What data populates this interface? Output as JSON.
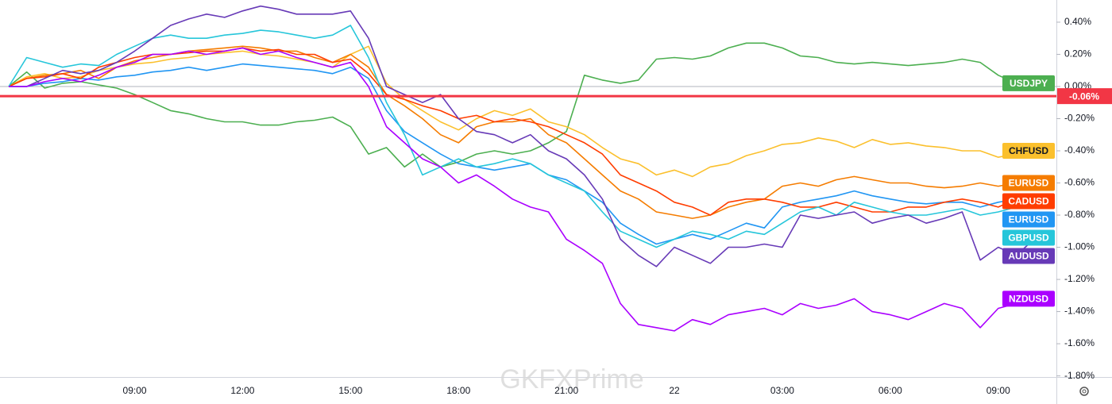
{
  "chart_data": {
    "type": "line",
    "categories": [
      null,
      null,
      null,
      null,
      null,
      null,
      null,
      "09:00",
      null,
      null,
      null,
      null,
      null,
      "12:00",
      null,
      null,
      null,
      null,
      null,
      "15:00",
      null,
      null,
      null,
      null,
      null,
      "18:00",
      null,
      null,
      null,
      null,
      null,
      "21:00",
      null,
      null,
      null,
      null,
      null,
      "22",
      null,
      null,
      null,
      null,
      null,
      "03:00",
      null,
      null,
      null,
      null,
      null,
      "06:00",
      null,
      null,
      null,
      null,
      null,
      "09:00",
      null,
      null,
      null
    ],
    "series": [
      {
        "name": "USDJPY",
        "color": "#4caf50",
        "values": [
          0,
          0.09,
          -0.01,
          0.02,
          0.03,
          0.01,
          -0.01,
          -0.05,
          -0.1,
          -0.15,
          -0.17,
          -0.2,
          -0.22,
          -0.22,
          -0.24,
          -0.24,
          -0.22,
          -0.21,
          -0.19,
          -0.25,
          -0.42,
          -0.38,
          -0.5,
          -0.42,
          -0.5,
          -0.47,
          -0.42,
          -0.4,
          -0.42,
          -0.4,
          -0.35,
          -0.28,
          0.07,
          0.04,
          0.02,
          0.04,
          0.17,
          0.18,
          0.17,
          0.19,
          0.24,
          0.27,
          0.27,
          0.24,
          0.19,
          0.18,
          0.15,
          0.14,
          0.15,
          0.14,
          0.13,
          0.14,
          0.15,
          0.17,
          0.15,
          0.07,
          0.02,
          null,
          null
        ]
      },
      {
        "name": "CHFUSD",
        "color": "#fbc02d",
        "values": [
          0,
          0.06,
          0.08,
          0.05,
          0.06,
          0.1,
          0.12,
          0.14,
          0.15,
          0.17,
          0.18,
          0.2,
          0.21,
          0.22,
          0.2,
          0.19,
          0.17,
          0.15,
          0.12,
          0.2,
          0.25,
          0.02,
          -0.08,
          -0.15,
          -0.22,
          -0.27,
          -0.2,
          -0.15,
          -0.18,
          -0.14,
          -0.22,
          -0.25,
          -0.3,
          -0.38,
          -0.45,
          -0.48,
          -0.55,
          -0.52,
          -0.56,
          -0.5,
          -0.48,
          -0.43,
          -0.4,
          -0.36,
          -0.35,
          -0.32,
          -0.34,
          -0.38,
          -0.33,
          -0.36,
          -0.35,
          -0.37,
          -0.38,
          -0.4,
          -0.4,
          -0.44,
          -0.42,
          -0.4,
          null
        ]
      },
      {
        "name": "EURUSD",
        "color": "#f57c00",
        "values": [
          0,
          0.05,
          0.07,
          0.08,
          0.1,
          0.05,
          0.12,
          0.16,
          0.18,
          0.2,
          0.22,
          0.23,
          0.24,
          0.25,
          0.24,
          0.22,
          0.22,
          0.18,
          0.15,
          0.2,
          0.12,
          -0.05,
          -0.12,
          -0.2,
          -0.3,
          -0.35,
          -0.25,
          -0.22,
          -0.22,
          -0.2,
          -0.3,
          -0.35,
          -0.45,
          -0.55,
          -0.65,
          -0.7,
          -0.78,
          -0.8,
          -0.82,
          -0.8,
          -0.75,
          -0.72,
          -0.7,
          -0.62,
          -0.6,
          -0.62,
          -0.58,
          -0.56,
          -0.58,
          -0.6,
          -0.6,
          -0.62,
          -0.63,
          -0.62,
          -0.6,
          -0.62,
          -0.6,
          -0.6,
          null
        ]
      },
      {
        "name": "EURUSD",
        "color": "#2196f3",
        "values": [
          0,
          0.0,
          0.02,
          0.03,
          0.05,
          0.04,
          0.06,
          0.07,
          0.09,
          0.1,
          0.12,
          0.1,
          0.12,
          0.14,
          0.13,
          0.12,
          0.11,
          0.1,
          0.08,
          0.12,
          0.05,
          -0.15,
          -0.28,
          -0.35,
          -0.42,
          -0.48,
          -0.5,
          -0.52,
          -0.5,
          -0.48,
          -0.55,
          -0.58,
          -0.65,
          -0.72,
          -0.85,
          -0.92,
          -0.98,
          -0.95,
          -0.92,
          -0.95,
          -0.9,
          -0.85,
          -0.88,
          -0.75,
          -0.72,
          -0.7,
          -0.68,
          -0.65,
          -0.68,
          -0.7,
          -0.72,
          -0.73,
          -0.72,
          -0.72,
          -0.75,
          -0.72,
          -0.7,
          -0.72,
          null
        ]
      },
      {
        "name": "CADUSD",
        "color": "#ff3d00",
        "values": [
          0,
          0.05,
          0.06,
          0.08,
          0.05,
          0.12,
          0.15,
          0.18,
          0.2,
          0.2,
          0.21,
          0.22,
          0.22,
          0.24,
          0.22,
          0.23,
          0.2,
          0.2,
          0.15,
          0.17,
          0.08,
          -0.05,
          -0.08,
          -0.12,
          -0.15,
          -0.2,
          -0.18,
          -0.22,
          -0.2,
          -0.22,
          -0.25,
          -0.3,
          -0.35,
          -0.42,
          -0.55,
          -0.6,
          -0.65,
          -0.72,
          -0.75,
          -0.8,
          -0.72,
          -0.7,
          -0.7,
          -0.72,
          -0.75,
          -0.75,
          -0.72,
          -0.75,
          -0.78,
          -0.78,
          -0.75,
          -0.75,
          -0.72,
          -0.7,
          -0.72,
          -0.75,
          -0.7,
          -0.68,
          null
        ]
      },
      {
        "name": "GBPUSD",
        "color": "#26c6da",
        "values": [
          0,
          0.18,
          0.15,
          0.12,
          0.14,
          0.13,
          0.2,
          0.25,
          0.3,
          0.32,
          0.3,
          0.3,
          0.32,
          0.33,
          0.35,
          0.34,
          0.32,
          0.3,
          0.32,
          0.38,
          0.18,
          -0.1,
          -0.3,
          -0.55,
          -0.5,
          -0.45,
          -0.5,
          -0.48,
          -0.45,
          -0.48,
          -0.55,
          -0.6,
          -0.65,
          -0.78,
          -0.9,
          -0.95,
          -1.0,
          -0.95,
          -0.9,
          -0.92,
          -0.95,
          -0.9,
          -0.92,
          -0.85,
          -0.78,
          -0.75,
          -0.8,
          -0.72,
          -0.75,
          -0.78,
          -0.8,
          -0.8,
          -0.78,
          -0.76,
          -0.8,
          -0.78,
          -0.75,
          -0.72,
          null
        ]
      },
      {
        "name": "AUDUSD",
        "color": "#673ab7",
        "values": [
          0,
          0.0,
          0.05,
          0.1,
          0.08,
          0.1,
          0.15,
          0.22,
          0.3,
          0.38,
          0.42,
          0.45,
          0.43,
          0.47,
          0.5,
          0.48,
          0.45,
          0.45,
          0.45,
          0.47,
          0.3,
          0.0,
          -0.05,
          -0.1,
          -0.05,
          -0.2,
          -0.28,
          -0.3,
          -0.35,
          -0.3,
          -0.4,
          -0.45,
          -0.55,
          -0.7,
          -0.95,
          -1.05,
          -1.12,
          -1.0,
          -1.05,
          -1.1,
          -1.0,
          -1.0,
          -0.98,
          -1.0,
          -0.8,
          -0.82,
          -0.8,
          -0.78,
          -0.85,
          -0.82,
          -0.8,
          -0.85,
          -0.82,
          -0.78,
          -1.08,
          -1.0,
          -1.05,
          -0.95,
          null
        ]
      },
      {
        "name": "NZDUSD",
        "color": "#aa00ff",
        "values": [
          0,
          0.0,
          0.03,
          0.05,
          0.03,
          0.07,
          0.12,
          0.15,
          0.2,
          0.2,
          0.22,
          0.2,
          0.22,
          0.24,
          0.2,
          0.22,
          0.18,
          0.15,
          0.12,
          0.15,
          0.0,
          -0.25,
          -0.35,
          -0.45,
          -0.5,
          -0.6,
          -0.55,
          -0.62,
          -0.7,
          -0.75,
          -0.78,
          -0.95,
          -1.02,
          -1.1,
          -1.35,
          -1.48,
          -1.5,
          -1.52,
          -1.45,
          -1.48,
          -1.42,
          -1.4,
          -1.38,
          -1.42,
          -1.35,
          -1.38,
          -1.36,
          -1.32,
          -1.4,
          -1.42,
          -1.45,
          -1.4,
          -1.35,
          -1.38,
          -1.5,
          -1.38,
          -1.35,
          -1.32,
          null
        ]
      }
    ],
    "price_line": {
      "value": -0.06,
      "label": "-0.06%",
      "color": "#f23645"
    },
    "ylim": [
      -1.807,
      0.538
    ],
    "yticks": [
      {
        "value": 0.4,
        "label": "0.40%"
      },
      {
        "value": 0.2,
        "label": "0.20%"
      },
      {
        "value": 0,
        "label": "0.00%"
      },
      {
        "value": -0.2,
        "label": "-0.20%"
      },
      {
        "value": -0.4,
        "label": "-0.40%"
      },
      {
        "value": -0.6,
        "label": "-0.60%"
      },
      {
        "value": -0.8,
        "label": "-0.80%"
      },
      {
        "value": -1.0,
        "label": "-1.00%"
      },
      {
        "value": -1.2,
        "label": "-1.20%"
      },
      {
        "value": -1.4,
        "label": "-1.40%"
      },
      {
        "value": -1.6,
        "label": "-1.60%"
      },
      {
        "value": -1.8,
        "label": "-1.80%"
      }
    ],
    "watermark": "GKFXPrime"
  }
}
